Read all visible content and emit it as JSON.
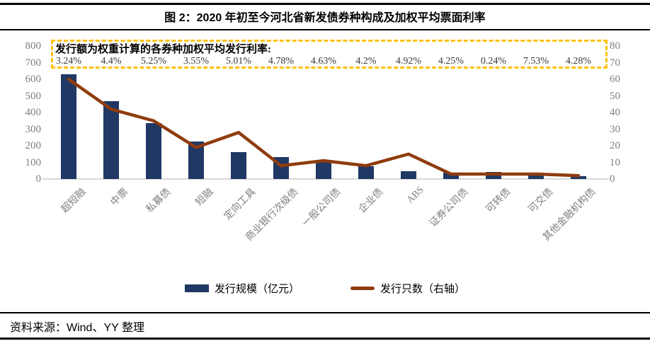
{
  "figure": {
    "title": "图 2：2020 年初至今河北省新发债券种构成及加权平均票面利率",
    "source": "资料来源：Wind、YY 整理"
  },
  "annotation": {
    "heading": "发行额为权重计算的各券种加权平均发行利率:",
    "rates": [
      "3.24%",
      "4.4%",
      "5.25%",
      "3.55%",
      "5.01%",
      "4.78%",
      "4.63%",
      "4.2%",
      "4.92%",
      "4.25%",
      "0.24%",
      "7.53%",
      "4.28%"
    ]
  },
  "colors": {
    "bar": "#1F3864",
    "line": "#8F3C0E",
    "annotation_border": "#FFC000",
    "axis_text": "#7F7F7F",
    "baseline": "#D9D9D9"
  },
  "chart_data": {
    "type": "bar",
    "subtype": "bar+line dual axis",
    "categories": [
      "超短融",
      "中票",
      "私募债",
      "短融",
      "定向工具",
      "商业银行次级债",
      "一般公司债",
      "企业债",
      "ABS",
      "证券公司债",
      "可转债",
      "可交债",
      "其他金融机构债"
    ],
    "series": [
      {
        "name": "发行规模（亿元）",
        "type": "bar",
        "axis": "left",
        "values": [
          630,
          470,
          335,
          225,
          160,
          130,
          105,
          75,
          48,
          37,
          42,
          21,
          15
        ]
      },
      {
        "name": "发行只数（右轴）",
        "type": "line",
        "axis": "right",
        "values": [
          60,
          42,
          35,
          19,
          28,
          8,
          11,
          8,
          15,
          3,
          3,
          3,
          2
        ]
      }
    ],
    "left_axis": {
      "min": 0,
      "max": 800,
      "step": 100,
      "ticks": [
        "800",
        "700",
        "600",
        "500",
        "400",
        "300",
        "200",
        "100",
        "0"
      ]
    },
    "right_axis": {
      "min": 0,
      "max": 80,
      "step": 10,
      "ticks": [
        "80",
        "70",
        "60",
        "50",
        "40",
        "30",
        "20",
        "10",
        "0"
      ]
    },
    "grid": false,
    "legend_position": "bottom",
    "title": "图 2：2020 年初至今河北省新发债券种构成及加权平均票面利率",
    "xlabel": "",
    "ylabel_left": "发行规模（亿元）",
    "ylabel_right": "发行只数"
  }
}
